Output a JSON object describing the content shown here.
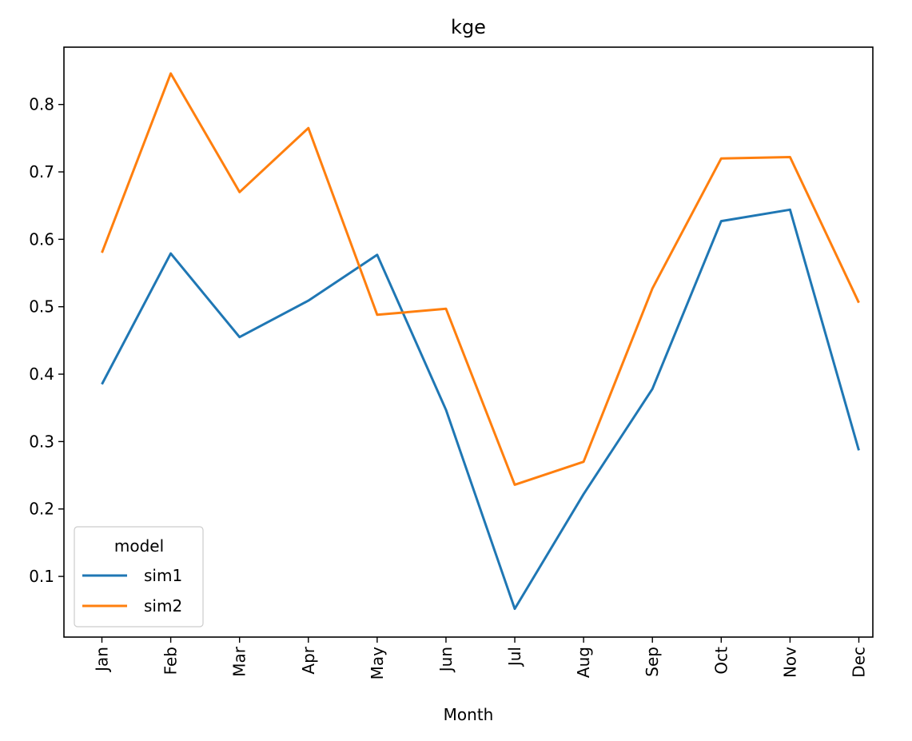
{
  "chart_data": {
    "type": "line",
    "title": "kge",
    "xlabel": "Month",
    "ylabel": "",
    "categories": [
      "Jan",
      "Feb",
      "Mar",
      "Apr",
      "May",
      "Jun",
      "Jul",
      "Aug",
      "Sep",
      "Oct",
      "Nov",
      "Dec"
    ],
    "ylim": [
      0.01,
      0.885
    ],
    "yticks": [
      0.1,
      0.2,
      0.3,
      0.4,
      0.5,
      0.6,
      0.7,
      0.8
    ],
    "ytick_labels": [
      "0.1",
      "0.2",
      "0.3",
      "0.4",
      "0.5",
      "0.6",
      "0.7",
      "0.8"
    ],
    "grid": false,
    "legend": {
      "title": "model",
      "placement": "lower-left"
    },
    "series": [
      {
        "name": "sim1",
        "color": "#1f77b4",
        "values": [
          0.385,
          0.579,
          0.455,
          0.509,
          0.577,
          0.347,
          0.052,
          0.222,
          0.378,
          0.627,
          0.644,
          0.287
        ]
      },
      {
        "name": "sim2",
        "color": "#ff7f0e",
        "values": [
          0.58,
          0.846,
          0.67,
          0.765,
          0.488,
          0.497,
          0.236,
          0.27,
          0.527,
          0.72,
          0.722,
          0.506
        ]
      }
    ]
  }
}
